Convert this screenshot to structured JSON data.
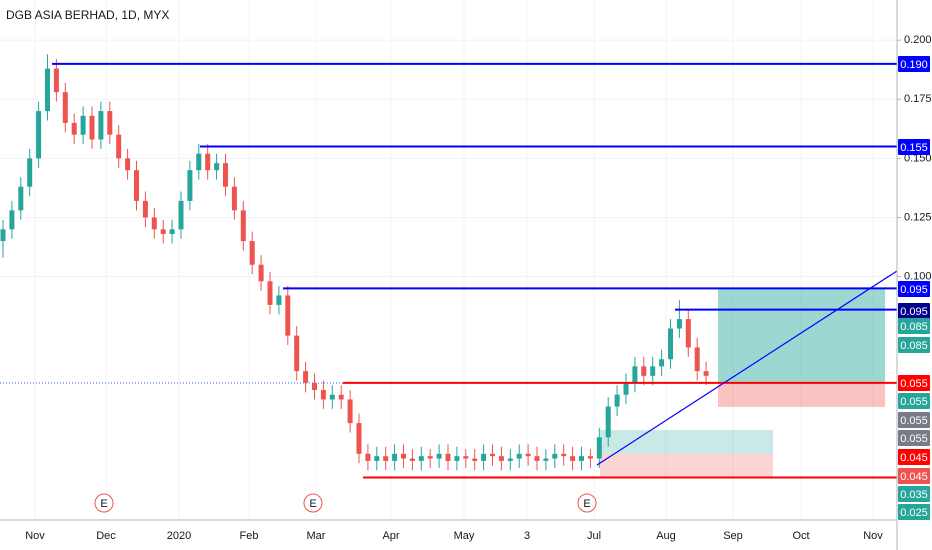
{
  "chart_data": {
    "type": "candlestick",
    "title": "DGB ASIA BERHAD, 1D, MYX",
    "open": [
      0.115,
      0.12,
      0.128,
      0.138,
      0.15,
      0.17,
      0.188,
      0.178,
      0.165,
      0.16,
      0.168,
      0.158,
      0.17,
      0.16,
      0.15,
      0.145,
      0.132,
      0.125,
      0.12,
      0.118,
      0.12,
      0.132,
      0.145,
      0.152,
      0.145,
      0.148,
      0.138,
      0.128,
      0.115,
      0.105,
      0.098,
      0.088,
      0.092,
      0.075,
      0.06,
      0.055,
      0.052,
      0.048,
      0.05,
      0.048,
      0.038,
      0.025,
      0.022,
      0.024,
      0.022,
      0.025,
      0.023,
      0.022,
      0.024,
      0.023,
      0.025,
      0.022,
      0.024,
      0.023,
      0.022,
      0.025,
      0.024,
      0.022,
      0.023,
      0.025,
      0.024,
      0.022,
      0.023,
      0.025,
      0.024,
      0.022,
      0.024,
      0.023,
      0.032,
      0.045,
      0.05,
      0.055,
      0.062,
      0.058,
      0.062,
      0.065,
      0.078,
      0.082,
      0.07,
      0.06
    ],
    "high": [
      0.124,
      0.132,
      0.142,
      0.154,
      0.174,
      0.194,
      0.192,
      0.182,
      0.169,
      0.172,
      0.172,
      0.174,
      0.174,
      0.164,
      0.154,
      0.149,
      0.136,
      0.129,
      0.124,
      0.124,
      0.136,
      0.149,
      0.156,
      0.156,
      0.152,
      0.152,
      0.142,
      0.132,
      0.119,
      0.109,
      0.102,
      0.096,
      0.096,
      0.079,
      0.064,
      0.059,
      0.056,
      0.054,
      0.054,
      0.052,
      0.042,
      0.029,
      0.028,
      0.028,
      0.029,
      0.029,
      0.027,
      0.028,
      0.027,
      0.029,
      0.029,
      0.028,
      0.027,
      0.027,
      0.029,
      0.029,
      0.028,
      0.027,
      0.029,
      0.029,
      0.028,
      0.027,
      0.029,
      0.029,
      0.028,
      0.028,
      0.027,
      0.036,
      0.049,
      0.054,
      0.059,
      0.066,
      0.066,
      0.066,
      0.069,
      0.082,
      0.09,
      0.086,
      0.074,
      0.064
    ],
    "low": [
      0.108,
      0.116,
      0.124,
      0.134,
      0.146,
      0.166,
      0.174,
      0.161,
      0.156,
      0.156,
      0.154,
      0.154,
      0.156,
      0.146,
      0.141,
      0.128,
      0.121,
      0.116,
      0.114,
      0.114,
      0.116,
      0.128,
      0.141,
      0.141,
      0.141,
      0.134,
      0.124,
      0.111,
      0.101,
      0.094,
      0.084,
      0.084,
      0.071,
      0.056,
      0.051,
      0.048,
      0.044,
      0.044,
      0.044,
      0.034,
      0.021,
      0.018,
      0.018,
      0.018,
      0.018,
      0.019,
      0.018,
      0.018,
      0.019,
      0.019,
      0.018,
      0.018,
      0.019,
      0.018,
      0.018,
      0.02,
      0.018,
      0.018,
      0.019,
      0.02,
      0.018,
      0.018,
      0.019,
      0.02,
      0.018,
      0.018,
      0.019,
      0.019,
      0.028,
      0.041,
      0.046,
      0.051,
      0.054,
      0.054,
      0.058,
      0.061,
      0.074,
      0.066,
      0.056,
      0.054
    ],
    "close": [
      0.12,
      0.128,
      0.138,
      0.15,
      0.17,
      0.188,
      0.178,
      0.165,
      0.16,
      0.168,
      0.158,
      0.17,
      0.16,
      0.15,
      0.145,
      0.132,
      0.125,
      0.12,
      0.118,
      0.12,
      0.132,
      0.145,
      0.152,
      0.145,
      0.148,
      0.138,
      0.128,
      0.115,
      0.105,
      0.098,
      0.088,
      0.092,
      0.075,
      0.06,
      0.055,
      0.052,
      0.048,
      0.05,
      0.048,
      0.038,
      0.025,
      0.022,
      0.024,
      0.022,
      0.025,
      0.023,
      0.022,
      0.024,
      0.023,
      0.025,
      0.022,
      0.024,
      0.023,
      0.022,
      0.025,
      0.024,
      0.022,
      0.023,
      0.025,
      0.024,
      0.022,
      0.023,
      0.025,
      0.024,
      0.022,
      0.024,
      0.023,
      0.032,
      0.045,
      0.05,
      0.055,
      0.062,
      0.058,
      0.062,
      0.065,
      0.078,
      0.082,
      0.07,
      0.06,
      0.058
    ],
    "up_color": "#26a69a",
    "down_color": "#ef5350",
    "ylim": [
      -0.003,
      0.217
    ],
    "yticks": [
      {
        "value": 0.1,
        "label": "0.100"
      },
      {
        "value": 0.125,
        "label": "0.125"
      },
      {
        "value": 0.15,
        "label": "0.150"
      },
      {
        "value": 0.175,
        "label": "0.175"
      },
      {
        "value": 0.2,
        "label": "0.200"
      }
    ],
    "x_labels": [
      "Nov",
      "Dec",
      "2020",
      "Feb",
      "Mar",
      "Apr",
      "May",
      "3",
      "Jul",
      "Aug",
      "Sep",
      "Oct",
      "Nov"
    ],
    "levels": [
      {
        "value": 0.19,
        "color": "#0000ff"
      },
      {
        "value": 0.155,
        "color": "#0000ff"
      },
      {
        "value": 0.095,
        "color": "#0000ff"
      },
      {
        "value": 0.086,
        "color": "#0000ff"
      },
      {
        "value": 0.055,
        "color": "#ff0000"
      },
      {
        "value": 0.015,
        "color": "#ff0000"
      }
    ],
    "price_tags": [
      {
        "label": "0.190",
        "color": "#0000ff"
      },
      {
        "label": "0.155",
        "color": "#0000ff"
      },
      {
        "label": "0.095",
        "color": "#0000ff"
      },
      {
        "label": "0.095",
        "color": "#00008b"
      },
      {
        "label": "0.085",
        "color": "#26a69a"
      },
      {
        "label": "0.085",
        "color": "#26a69a"
      },
      {
        "label": "0.055",
        "color": "#ff0000"
      },
      {
        "label": "0.055",
        "color": "#26a69a"
      },
      {
        "label": "0.055",
        "color": "#787b86"
      },
      {
        "label": "0.055",
        "color": "#787b86"
      },
      {
        "label": "0.045",
        "color": "#ff0000"
      },
      {
        "label": "0.045",
        "color": "#ef5350"
      },
      {
        "label": "0.035",
        "color": "#26a69a"
      },
      {
        "label": "0.025",
        "color": "#26a69a"
      }
    ],
    "events": [
      "E",
      "E",
      "E"
    ]
  }
}
